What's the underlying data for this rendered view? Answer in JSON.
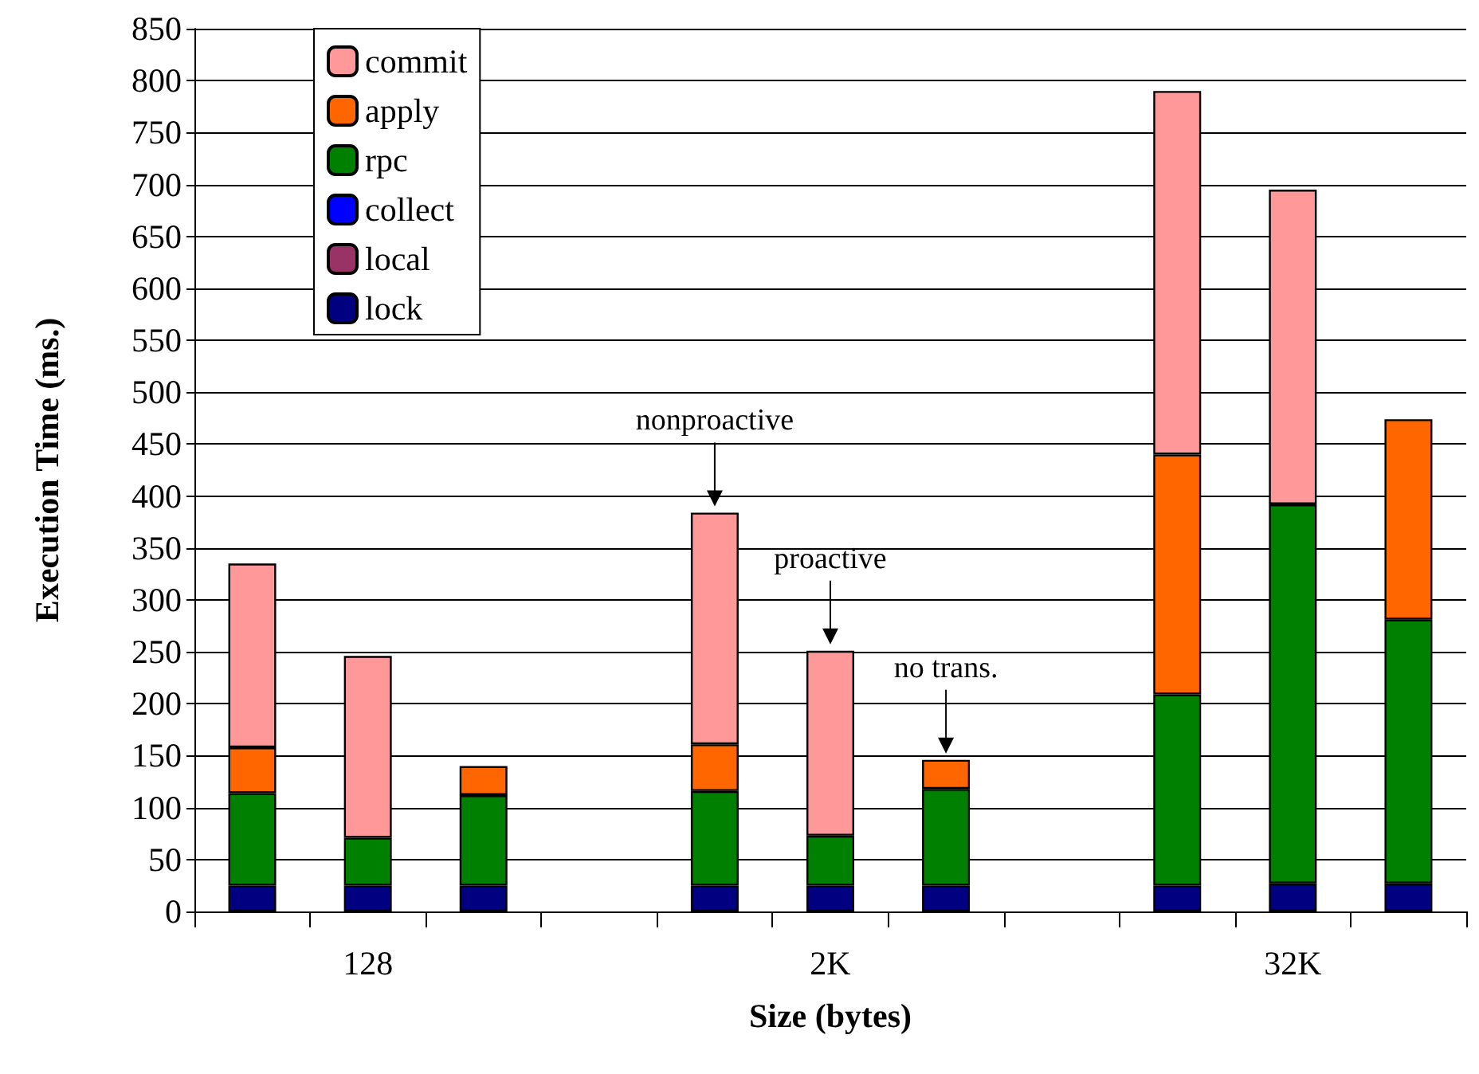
{
  "chart_data": {
    "type": "bar",
    "stacked": true,
    "xlabel": "Size (bytes)",
    "ylabel": "Execution Time (ms.)",
    "categories": [
      null,
      "128",
      null,
      null,
      null,
      "2K",
      null,
      null,
      null,
      "32K",
      null
    ],
    "series": [
      {
        "name": "lock",
        "color": "#000080",
        "values": [
          25,
          25,
          25,
          null,
          25,
          25,
          25,
          null,
          25,
          27,
          27
        ]
      },
      {
        "name": "local",
        "color": "#993366",
        "values": [
          null,
          null,
          null,
          null,
          null,
          null,
          null,
          null,
          null,
          null,
          null
        ]
      },
      {
        "name": "collect",
        "color": "#0000ff",
        "values": [
          null,
          null,
          null,
          null,
          null,
          null,
          null,
          null,
          null,
          null,
          null
        ]
      },
      {
        "name": "rpc",
        "color": "#008000",
        "values": [
          89,
          46,
          87,
          null,
          91,
          48,
          93,
          null,
          184,
          365,
          254
        ]
      },
      {
        "name": "apply",
        "color": "#ff6600",
        "values": [
          44,
          null,
          28,
          null,
          45,
          null,
          28,
          null,
          231,
          null,
          193
        ]
      },
      {
        "name": "commit",
        "color": "#ff9999",
        "values": [
          177,
          175,
          null,
          null,
          223,
          178,
          null,
          null,
          350,
          303,
          null
        ]
      }
    ],
    "ylim": [
      0,
      850
    ],
    "yticks": [
      0,
      50,
      100,
      150,
      200,
      250,
      300,
      350,
      400,
      450,
      500,
      550,
      600,
      650,
      700,
      750,
      800,
      850
    ],
    "grid": "y",
    "legend": "top left",
    "annotations": [
      {
        "text": "nonproactive",
        "y": 384
      },
      {
        "text": "proactive",
        "y": 251
      },
      {
        "text": "no trans.",
        "y": 146
      }
    ]
  }
}
